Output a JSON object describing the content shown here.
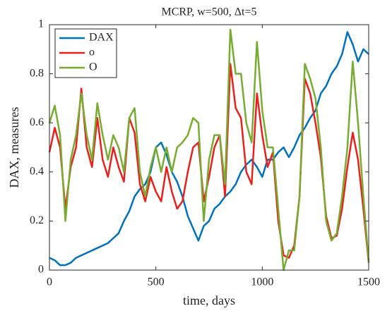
{
  "chart_data": {
    "type": "line",
    "title": "MCRP, w=500, Δt=5",
    "xlabel": "time, days",
    "ylabel": "DAX, measures",
    "x": [
      0,
      25,
      50,
      75,
      100,
      125,
      150,
      175,
      200,
      225,
      250,
      275,
      300,
      325,
      350,
      375,
      400,
      425,
      450,
      475,
      500,
      525,
      550,
      575,
      600,
      625,
      650,
      675,
      700,
      725,
      750,
      775,
      800,
      825,
      850,
      875,
      900,
      925,
      950,
      975,
      1000,
      1025,
      1050,
      1075,
      1100,
      1125,
      1150,
      1175,
      1200,
      1225,
      1250,
      1275,
      1300,
      1325,
      1350,
      1375,
      1400,
      1425,
      1450,
      1475,
      1500
    ],
    "series": [
      {
        "name": "DAX",
        "color": "#0072bd",
        "values": [
          0.05,
          0.04,
          0.02,
          0.02,
          0.03,
          0.05,
          0.06,
          0.07,
          0.08,
          0.09,
          0.1,
          0.11,
          0.13,
          0.15,
          0.2,
          0.24,
          0.3,
          0.33,
          0.35,
          0.4,
          0.5,
          0.52,
          0.47,
          0.4,
          0.36,
          0.3,
          0.22,
          0.17,
          0.12,
          0.18,
          0.2,
          0.25,
          0.27,
          0.3,
          0.32,
          0.35,
          0.4,
          0.43,
          0.45,
          0.42,
          0.38,
          0.45,
          0.45,
          0.48,
          0.5,
          0.46,
          0.5,
          0.55,
          0.58,
          0.62,
          0.65,
          0.72,
          0.75,
          0.8,
          0.83,
          0.88,
          0.97,
          0.92,
          0.85,
          0.9,
          0.88
        ]
      },
      {
        "name": "o",
        "color": "#e8211d",
        "values": [
          0.48,
          0.58,
          0.5,
          0.25,
          0.42,
          0.5,
          0.74,
          0.5,
          0.42,
          0.62,
          0.45,
          0.38,
          0.5,
          0.42,
          0.36,
          0.62,
          0.56,
          0.35,
          0.28,
          0.38,
          0.32,
          0.28,
          0.42,
          0.32,
          0.25,
          0.28,
          0.4,
          0.5,
          0.52,
          0.28,
          0.38,
          0.5,
          0.55,
          0.3,
          0.84,
          0.66,
          0.62,
          0.4,
          0.35,
          0.72,
          0.55,
          0.42,
          0.48,
          0.2,
          0.06,
          0.05,
          0.1,
          0.3,
          0.78,
          0.72,
          0.6,
          0.46,
          0.22,
          0.13,
          0.14,
          0.25,
          0.42,
          0.56,
          0.45,
          0.25,
          0.03
        ]
      },
      {
        "name": "O",
        "color": "#77ac30",
        "values": [
          0.6,
          0.67,
          0.55,
          0.2,
          0.45,
          0.55,
          0.72,
          0.55,
          0.45,
          0.68,
          0.55,
          0.45,
          0.55,
          0.5,
          0.4,
          0.62,
          0.66,
          0.4,
          0.3,
          0.42,
          0.5,
          0.4,
          0.5,
          0.4,
          0.5,
          0.52,
          0.55,
          0.62,
          0.6,
          0.2,
          0.45,
          0.55,
          0.55,
          0.35,
          0.98,
          0.8,
          0.8,
          0.6,
          0.52,
          0.93,
          0.65,
          0.5,
          0.5,
          0.25,
          0.0,
          0.08,
          0.08,
          0.3,
          0.84,
          0.78,
          0.7,
          0.5,
          0.2,
          0.12,
          0.15,
          0.3,
          0.5,
          0.85,
          0.6,
          0.3,
          0.03
        ]
      }
    ],
    "xlim": [
      0,
      1500
    ],
    "xticks": [
      0,
      500,
      1000,
      1500
    ],
    "ylim": [
      0,
      1
    ],
    "yticks": [
      0,
      0.2,
      0.4,
      0.6,
      0.8,
      1
    ],
    "grid": false,
    "legend": "upper-left"
  }
}
